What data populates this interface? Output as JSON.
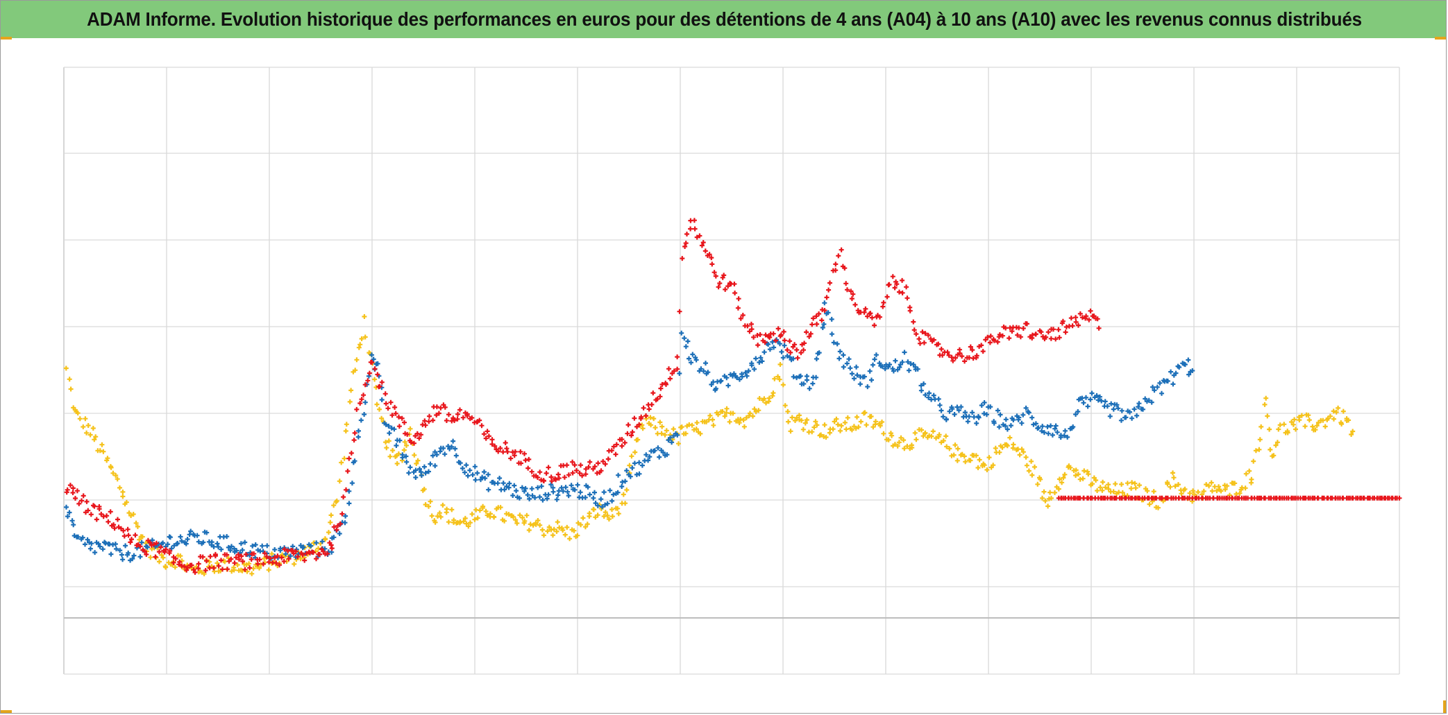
{
  "chart_data": {
    "type": "scatter",
    "title": "ADAM Informe. Evolution historique des performances en euros pour des détentions de 4 ans (A04) à 10 ans (A10) avec les revenus connus distribués",
    "xlabel": "",
    "ylabel": "",
    "x_range": [
      0,
      100
    ],
    "y_range": [
      0,
      100
    ],
    "grid": true,
    "legend": "none",
    "marker": "plus",
    "colors": {
      "gold": "#f5c21b",
      "blue": "#1c6fb8",
      "red": "#e8161c"
    },
    "series": [
      {
        "name": "gold",
        "color": "#f5c21b",
        "segments": [
          {
            "x": [
              0.2,
              0.8,
              2,
              3,
              4.2,
              5.5,
              6.2,
              7,
              7.8,
              8.5,
              9.5,
              10.5,
              11.5,
              12.5,
              13.5,
              14.5,
              15.5,
              16.5,
              17.5,
              18.5,
              19.5,
              20.5,
              21.5,
              22.5,
              23.5,
              24.5,
              25,
              26,
              27,
              27.7,
              28.3,
              29,
              29.5,
              30,
              31,
              32,
              33,
              34,
              35,
              36,
              37,
              38,
              39,
              40,
              41,
              42,
              43,
              43.5,
              44,
              45,
              46,
              46.3,
              47,
              48,
              49,
              50,
              51,
              52,
              53,
              53.7,
              54.3,
              55,
              56,
              57,
              58,
              59,
              60,
              61,
              62,
              63,
              64,
              65,
              66,
              67,
              68,
              69,
              70,
              71,
              72,
              73,
              73.5,
              74,
              75,
              76,
              77,
              78,
              79,
              80,
              81,
              82,
              83,
              84,
              85,
              86,
              87,
              88,
              89,
              90,
              90.5,
              91,
              92,
              93,
              94,
              95,
              96,
              96.5
            ],
            "y": [
              50,
              43,
              40,
              36,
              31,
              24,
              21,
              19.5,
              18.5,
              19,
              17,
              17.5,
              18,
              18,
              17.5,
              17.5,
              18.5,
              19,
              19.5,
              20.5,
              22,
              29,
              47,
              58,
              44,
              36,
              35,
              40,
              30,
              26,
              27,
              26,
              25,
              25,
              26,
              27,
              26,
              25,
              25,
              24,
              24,
              23,
              25,
              27,
              26,
              29,
              39,
              42,
              41,
              40,
              39,
              40,
              40,
              41,
              42,
              43,
              42,
              44,
              47,
              50,
              41,
              42,
              41,
              40,
              41,
              41,
              42,
              41,
              39,
              38,
              39,
              39,
              38,
              36,
              36,
              34,
              37,
              38,
              35.5,
              32,
              28,
              30,
              34,
              33,
              31.5,
              30.5,
              30,
              30.5,
              29.5,
              28.5,
              32,
              30,
              29,
              31,
              30,
              31,
              33,
              45,
              36,
              40,
              41,
              41.5,
              41,
              43,
              42,
              40
            ]
          }
        ]
      },
      {
        "name": "blue",
        "color": "#1c6fb8",
        "segments": [
          {
            "x": [
              0.2,
              1,
              2,
              3,
              4,
              5,
              6,
              7,
              8,
              9,
              10,
              11,
              12,
              13,
              14,
              15,
              16,
              17,
              18,
              19,
              20,
              21,
              22,
              23,
              23.5,
              24,
              25,
              26,
              27,
              28,
              29,
              30,
              31,
              32,
              33,
              34,
              35,
              36,
              37,
              38,
              39,
              40,
              41,
              42,
              43,
              44,
              45,
              46,
              46.3,
              47,
              48,
              49,
              50,
              51,
              52,
              53,
              54,
              55,
              56,
              56.5,
              57,
              58,
              59,
              60,
              61,
              62,
              63,
              64,
              65,
              66,
              67,
              68,
              69,
              70,
              71,
              72,
              73,
              74,
              75,
              76,
              77,
              78,
              79,
              80,
              81,
              82,
              83,
              84,
              84.5
            ],
            "y": [
              27,
              22,
              21,
              21,
              20,
              20,
              20.5,
              21,
              22,
              22,
              22.5,
              22,
              21.5,
              21,
              20.5,
              20,
              20,
              20,
              20.5,
              20.5,
              21,
              25,
              38,
              52,
              50,
              42,
              38,
              33.5,
              33,
              36.5,
              38,
              34.5,
              32.5,
              31.5,
              31,
              30,
              29.5,
              30,
              30,
              30.5,
              30,
              28.5,
              29.5,
              33,
              34,
              36,
              37,
              40,
              57,
              52,
              50,
              47,
              49,
              50,
              52,
              55,
              53,
              49,
              48,
              52,
              61,
              53,
              50,
              48,
              52,
              50,
              52,
              49,
              45,
              43,
              43,
              42,
              43.5,
              42,
              41,
              43,
              41,
              40.5,
              39,
              44,
              45,
              44,
              43,
              42,
              45,
              47,
              49,
              51,
              50
            ]
          }
        ]
      },
      {
        "name": "red",
        "color": "#e8161c",
        "segments": [
          {
            "x": [
              0.2,
              1,
              2,
              3,
              4,
              5,
              6,
              7,
              8,
              9,
              10,
              11,
              12,
              13,
              14,
              15,
              16,
              17,
              18,
              19,
              20,
              21,
              22,
              23,
              24,
              25,
              26,
              27,
              28,
              29,
              30,
              31,
              32,
              33,
              34,
              35,
              36,
              37,
              38,
              39,
              40,
              41,
              42,
              43,
              44,
              45,
              46,
              46.3,
              47,
              48,
              49,
              50,
              51,
              52,
              53,
              54,
              55,
              55.5,
              56,
              57,
              58,
              59,
              60,
              61,
              62,
              63,
              64,
              65,
              66,
              67,
              68,
              69,
              70,
              71,
              72,
              73,
              74,
              75,
              76,
              77,
              77.5
            ],
            "y": [
              31,
              29,
              27,
              26,
              25,
              22,
              21,
              20.5,
              19,
              18,
              18,
              18.5,
              18.5,
              18.5,
              18.5,
              19,
              19,
              19.5,
              19.5,
              20,
              21,
              28,
              43,
              52,
              46,
              42,
              38.5,
              41,
              44,
              42,
              43,
              41,
              38,
              37,
              36,
              34,
              33,
              33,
              34,
              33.5,
              34,
              36,
              39,
              42,
              45,
              48,
              52,
              69,
              75,
              70,
              65,
              64,
              58,
              55,
              56.5,
              55,
              53,
              55,
              57,
              60,
              70,
              62,
              59,
              58,
              65,
              63,
              56,
              54,
              53,
              52.5,
              53,
              54,
              56,
              56,
              57,
              55.5,
              56,
              57,
              58,
              59,
              57
            ]
          },
          {
            "x": [
              74.5,
              76,
              78,
              80,
              82,
              84,
              86,
              88,
              90,
              92,
              94,
              96,
              98,
              100
            ],
            "y": [
              29,
              29,
              29,
              29,
              29,
              29,
              29,
              29,
              29,
              29,
              29,
              29,
              29,
              29
            ]
          }
        ]
      }
    ]
  }
}
